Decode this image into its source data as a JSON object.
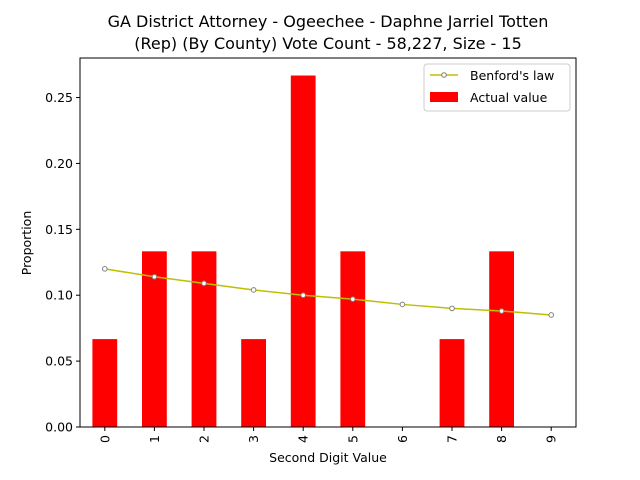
{
  "chart_data": {
    "type": "bar",
    "title_line1": "GA District Attorney - Ogeechee - Daphne Jarriel Totten",
    "title_line2": "(Rep) (By County) Vote Count - 58,227, Size - 15",
    "xlabel": "Second Digit Value",
    "ylabel": "Proportion",
    "categories": [
      "0",
      "1",
      "2",
      "3",
      "4",
      "5",
      "6",
      "7",
      "8",
      "9"
    ],
    "ylim": [
      0,
      0.28
    ],
    "yticks": [
      0.0,
      0.05,
      0.1,
      0.15,
      0.2,
      0.25
    ],
    "ytick_labels": [
      "0.00",
      "0.05",
      "0.10",
      "0.15",
      "0.20",
      "0.25"
    ],
    "grid": false,
    "legend_position": "top-right",
    "series": [
      {
        "name": "Benford's law",
        "kind": "line",
        "color": "#bfbf00",
        "marker_edge": "#808080",
        "values": [
          0.12,
          0.114,
          0.109,
          0.104,
          0.1,
          0.097,
          0.093,
          0.09,
          0.088,
          0.085
        ]
      },
      {
        "name": "Actual value",
        "kind": "bar",
        "color": "#ff0000",
        "values": [
          0.0667,
          0.1333,
          0.1333,
          0.0667,
          0.2667,
          0.1333,
          0.0,
          0.0667,
          0.1333,
          0.0
        ]
      }
    ]
  }
}
